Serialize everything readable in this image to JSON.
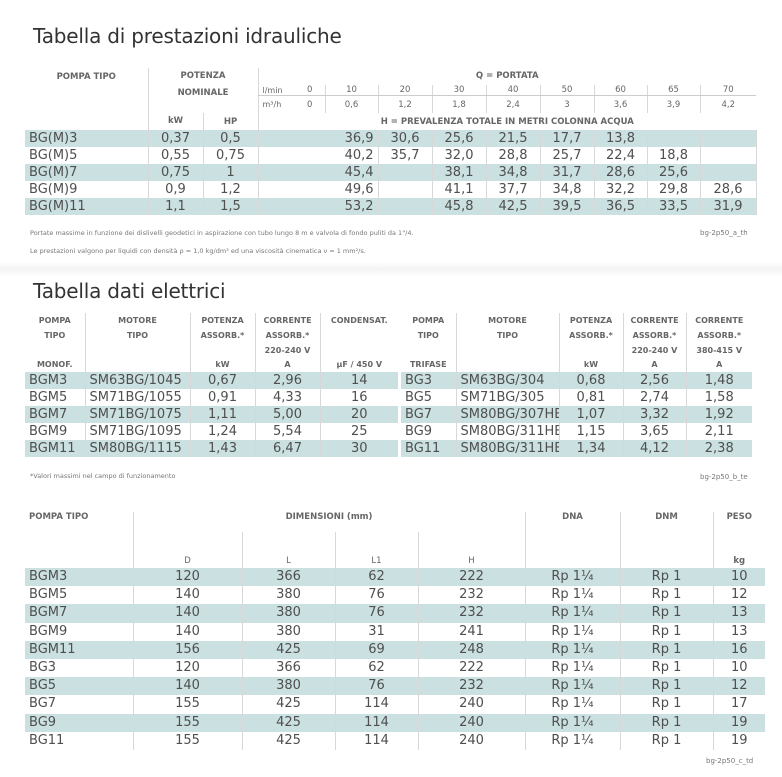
{
  "hydraulic": {
    "title": "Tabella di prestazioni idrauliche",
    "headers": {
      "pump_type": "POMPA TIPO",
      "power": "POTENZA",
      "nominal": "NOMINALE",
      "flow": "Q = PORTATA",
      "lmin": "l/min",
      "m3h": "m³/h",
      "kw": "kW",
      "hp": "HP",
      "head": "H = PREVALENZA TOTALE IN METRI COLONNA ACQUA"
    },
    "flow_lmin": [
      "0",
      "10",
      "20",
      "30",
      "40",
      "50",
      "60",
      "65",
      "70"
    ],
    "flow_m3h": [
      "0",
      "0,6",
      "1,2",
      "1,8",
      "2,4",
      "3",
      "3,6",
      "3,9",
      "4,2"
    ],
    "rows": [
      {
        "pump": "BG(M)3",
        "kw": "0,37",
        "hp": "0,5",
        "h": [
          "36,9",
          "30,6",
          "25,6",
          "21,5",
          "17,7",
          "13,8",
          "",
          "",
          ""
        ]
      },
      {
        "pump": "BG(M)5",
        "kw": "0,55",
        "hp": "0,75",
        "h": [
          "40,2",
          "35,7",
          "32,0",
          "28,8",
          "25,7",
          "22,4",
          "18,8",
          "",
          ""
        ]
      },
      {
        "pump": "BG(M)7",
        "kw": "0,75",
        "hp": "1",
        "h": [
          "45,4",
          "",
          "38,1",
          "34,8",
          "31,7",
          "28,6",
          "25,6",
          "",
          ""
        ]
      },
      {
        "pump": "BG(M)9",
        "kw": "0,9",
        "hp": "1,2",
        "h": [
          "49,6",
          "",
          "41,1",
          "37,7",
          "34,8",
          "32,2",
          "29,8",
          "28,6",
          ""
        ]
      },
      {
        "pump": "BG(M)11",
        "kw": "1,1",
        "hp": "1,5",
        "h": [
          "53,2",
          "",
          "45,8",
          "42,5",
          "39,5",
          "36,5",
          "33,5",
          "31,9",
          "30,3"
        ]
      }
    ],
    "note1": "Portate massime in funzione dei dislivelli geodetici in aspirazione con tubo lungo 8 m e valvola di fondo puliti da 1\"/4.",
    "note2": "Le prestazioni valgono per liquidi con densità ρ = 1,0 kg/dm³ ed una viscosità cinematica ν = 1 mm²/s.",
    "code": "bg-2p50_a_th"
  },
  "electrical": {
    "title": "Tabella dati elettrici",
    "mono_headers": [
      "POMPA|TIPO||MONOF.",
      "MOTORE|TIPO||",
      "POTENZA|ASSORB.*||kW",
      "CORRENTE|ASSORB.*|220-240 V|A",
      "CONDENSAT.|||µF / 450 V"
    ],
    "mono_rows": [
      [
        "BGM3",
        "SM63BG/1045",
        "0,67",
        "2,96",
        "14"
      ],
      [
        "BGM5",
        "SM71BG/1055",
        "0,91",
        "4,33",
        "16"
      ],
      [
        "BGM7",
        "SM71BG/1075",
        "1,11",
        "5,00",
        "20"
      ],
      [
        "BGM9",
        "SM71BG/1095",
        "1,24",
        "5,54",
        "25"
      ],
      [
        "BGM11",
        "SM80BG/1115",
        "1,43",
        "6,47",
        "30"
      ]
    ],
    "tri_headers": [
      "POMPA|TIPO||TRIFASE",
      "MOTORE|TIPO||",
      "POTENZA|ASSORB.*||kW",
      "CORRENTE|ASSORB.*|220-240 V|A",
      "CORRENTE|ASSORB.*|380-415 V|A"
    ],
    "tri_rows": [
      [
        "BG3",
        "SM63BG/304",
        "0,68",
        "2,56",
        "1,48"
      ],
      [
        "BG5",
        "SM71BG/305",
        "0,81",
        "2,74",
        "1,58"
      ],
      [
        "BG7",
        "SM80BG/307HE",
        "1,07",
        "3,32",
        "1,92"
      ],
      [
        "BG9",
        "SM80BG/311HE",
        "1,15",
        "3,65",
        "2,11"
      ],
      [
        "BG11",
        "SM80BG/311HE",
        "1,34",
        "4,12",
        "2,38"
      ]
    ],
    "note": "*Valori massimi nel campo di funzionamento",
    "code": "bg-2p50_b_te"
  },
  "dimensions": {
    "headers": {
      "pump_type": "POMPA TIPO",
      "dimensions": "DIMENSIONI (mm)",
      "dna": "DNA",
      "dnm": "DNM",
      "weight": "PESO"
    },
    "subheaders": [
      "",
      "D",
      "L",
      "L1",
      "H",
      "",
      "",
      "kg"
    ],
    "rows": [
      [
        "BGM3",
        "120",
        "366",
        "62",
        "222",
        "Rp 1¼",
        "Rp 1",
        "10"
      ],
      [
        "BGM5",
        "140",
        "380",
        "76",
        "232",
        "Rp 1¼",
        "Rp 1",
        "12"
      ],
      [
        "BGM7",
        "140",
        "380",
        "76",
        "232",
        "Rp 1¼",
        "Rp 1",
        "13"
      ],
      [
        "BGM9",
        "140",
        "380",
        "31",
        "241",
        "Rp 1¼",
        "Rp 1",
        "13"
      ],
      [
        "BGM11",
        "156",
        "425",
        "69",
        "248",
        "Rp 1¼",
        "Rp 1",
        "16"
      ],
      [
        "BG3",
        "120",
        "366",
        "62",
        "222",
        "Rp 1¼",
        "Rp 1",
        "10"
      ],
      [
        "BG5",
        "140",
        "380",
        "76",
        "232",
        "Rp 1¼",
        "Rp 1",
        "12"
      ],
      [
        "BG7",
        "155",
        "425",
        "114",
        "240",
        "Rp 1¼",
        "Rp 1",
        "17"
      ],
      [
        "BG9",
        "155",
        "425",
        "114",
        "240",
        "Rp 1¼",
        "Rp 1",
        "19"
      ],
      [
        "BG11",
        "155",
        "425",
        "114",
        "240",
        "Rp 1¼",
        "Rp 1",
        "19"
      ]
    ],
    "code": "bg-2p50_c_td"
  },
  "colors": {
    "row_shade": "#cbe0e1",
    "text": "#4f4f4f"
  }
}
